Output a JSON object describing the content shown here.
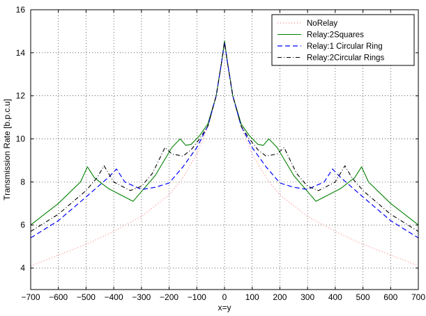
{
  "chart_data": {
    "type": "line",
    "xlabel": "x=y",
    "ylabel": "Transmission Rate [b.p.c.u]",
    "xlim": [
      -700,
      700
    ],
    "ylim": [
      3,
      16
    ],
    "xticks": [
      -700,
      -600,
      -500,
      -400,
      -300,
      -200,
      -100,
      0,
      100,
      200,
      300,
      400,
      500,
      600,
      700
    ],
    "yticks": [
      4,
      6,
      8,
      10,
      12,
      14,
      16
    ],
    "grid": true,
    "legend_position": "top-right",
    "series": [
      {
        "name": "NoRelay",
        "color": "#ff7f7f",
        "style": "dotted",
        "x": [
          -700,
          -600,
          -500,
          -400,
          -300,
          -200,
          -150,
          -100,
          -60,
          -30,
          -10,
          0,
          10,
          30,
          60,
          100,
          150,
          200,
          300,
          400,
          500,
          600,
          700
        ],
        "y": [
          4.1,
          4.6,
          5.1,
          5.7,
          6.4,
          7.4,
          8.2,
          9.3,
          10.6,
          12.0,
          13.6,
          14.5,
          13.6,
          12.0,
          10.6,
          9.3,
          8.2,
          7.4,
          6.4,
          5.7,
          5.1,
          4.6,
          4.1
        ]
      },
      {
        "name": "Relay:2Squares",
        "color": "#008000",
        "style": "solid",
        "x": [
          -700,
          -600,
          -520,
          -495,
          -470,
          -420,
          -330,
          -250,
          -190,
          -160,
          -140,
          -120,
          -90,
          -60,
          -30,
          -10,
          0,
          10,
          30,
          60,
          90,
          120,
          140,
          160,
          190,
          250,
          330,
          420,
          470,
          495,
          520,
          600,
          700
        ],
        "y": [
          6.0,
          7.0,
          8.0,
          8.7,
          8.2,
          7.7,
          7.1,
          8.3,
          9.6,
          10.0,
          9.7,
          9.75,
          10.15,
          10.7,
          12.0,
          13.6,
          14.55,
          13.6,
          12.0,
          10.7,
          10.15,
          9.75,
          9.7,
          10.0,
          9.6,
          8.3,
          7.1,
          7.7,
          8.2,
          8.7,
          8.0,
          7.0,
          6.0
        ]
      },
      {
        "name": "Relay:1 Circular Ring",
        "color": "#0000ff",
        "style": "dashed",
        "x": [
          -700,
          -600,
          -500,
          -420,
          -390,
          -360,
          -300,
          -250,
          -200,
          -150,
          -100,
          -60,
          -30,
          -10,
          0,
          10,
          30,
          60,
          100,
          150,
          200,
          250,
          300,
          360,
          390,
          420,
          500,
          600,
          700
        ],
        "y": [
          5.4,
          6.2,
          7.3,
          8.2,
          8.6,
          8.0,
          7.65,
          7.75,
          7.95,
          8.7,
          9.6,
          10.6,
          12.0,
          13.6,
          14.5,
          13.6,
          12.0,
          10.6,
          9.6,
          8.7,
          7.95,
          7.75,
          7.65,
          8.0,
          8.6,
          8.2,
          7.3,
          6.2,
          5.4
        ]
      },
      {
        "name": "Relay:2Circular Rings",
        "color": "#000000",
        "style": "dashdot",
        "x": [
          -700,
          -600,
          -500,
          -460,
          -435,
          -400,
          -340,
          -300,
          -260,
          -215,
          -190,
          -150,
          -120,
          -90,
          -60,
          -30,
          -10,
          0,
          10,
          30,
          60,
          90,
          120,
          150,
          190,
          215,
          260,
          300,
          340,
          400,
          435,
          460,
          500,
          600,
          700
        ],
        "y": [
          5.7,
          6.5,
          7.6,
          8.2,
          8.75,
          8.0,
          7.6,
          7.8,
          8.4,
          9.6,
          9.3,
          9.2,
          9.5,
          10.0,
          10.6,
          12.0,
          13.6,
          14.5,
          13.6,
          12.0,
          10.6,
          10.0,
          9.5,
          9.2,
          9.3,
          9.6,
          8.4,
          7.8,
          7.6,
          8.0,
          8.75,
          8.2,
          7.6,
          6.5,
          5.7
        ]
      }
    ]
  }
}
